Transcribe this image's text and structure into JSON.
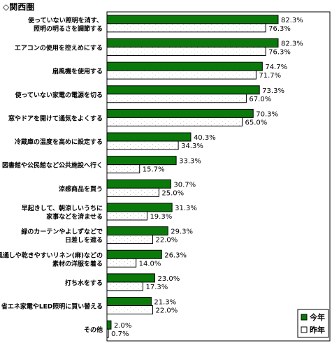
{
  "chart_data": {
    "type": "bar",
    "orientation": "horizontal",
    "title": "◇関西圏",
    "xlim": [
      0,
      85
    ],
    "grid": false,
    "legend_position": "bottom-right",
    "categories": [
      [
        "使っていない照明を消す、",
        "照明の明るさを調節する"
      ],
      [
        "エアコンの使用を控えめにする"
      ],
      [
        "扇風機を使用する"
      ],
      [
        "使っていない家電の電源を切る"
      ],
      [
        "窓やドアを開けて通気をよくする"
      ],
      [
        "冷蔵庫の温度を高めに設定する"
      ],
      [
        "図書館や公民館など公共施設へ行く"
      ],
      [
        "涼感商品を買う"
      ],
      [
        "早起きして、朝涼しいうちに",
        "家事などを済ませる"
      ],
      [
        "緑のカーテンやよしずなどで",
        "日差しを遮る"
      ],
      [
        "風通しや乾きやすいリネン(麻)などの",
        "素材の洋服を着る"
      ],
      [
        "打ち水をする"
      ],
      [
        "省エネ家電やLED照明に買い替える"
      ],
      [
        "その他"
      ]
    ],
    "series": [
      {
        "name": "今年",
        "color": "#0a7a0a",
        "values": [
          82.3,
          82.3,
          74.7,
          73.3,
          70.3,
          40.3,
          33.3,
          30.7,
          31.3,
          29.3,
          26.3,
          23.0,
          21.3,
          2.0
        ],
        "labels": [
          "82.3%",
          "82.3%",
          "74.7%",
          "73.3%",
          "70.3%",
          "40.3%",
          "33.3%",
          "30.7%",
          "31.3%",
          "29.3%",
          "26.3%",
          "23.0%",
          "21.3%",
          "2.0%"
        ]
      },
      {
        "name": "昨年",
        "color": "#ffffff",
        "values": [
          76.3,
          76.3,
          71.7,
          67.0,
          65.0,
          34.3,
          15.7,
          25.0,
          19.3,
          22.0,
          14.0,
          17.3,
          22.0,
          0.7
        ],
        "labels": [
          "76.3%",
          "76.3%",
          "71.7%",
          "67.0%",
          "65.0%",
          "34.3%",
          "15.7%",
          "25.0%",
          "19.3%",
          "22.0%",
          "14.0%",
          "17.3%",
          "22.0%",
          "0.7%"
        ]
      }
    ]
  }
}
